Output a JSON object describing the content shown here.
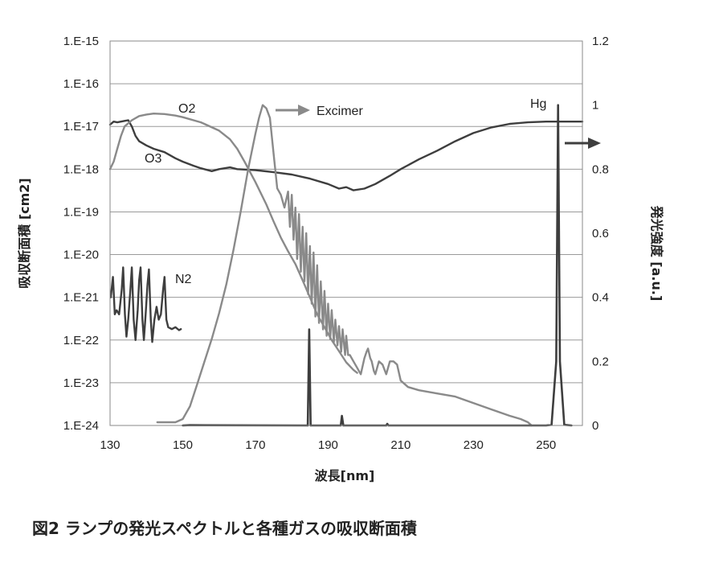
{
  "caption": "図2 ランプの発光スペクトルと各種ガスの吸収断面積",
  "chart_data": {
    "type": "line",
    "xlabel": "波長[nm]",
    "ylabel_left": "吸収断面積 [cm2]",
    "ylabel_right": "発光強度 [a.u.]",
    "xlim": [
      130,
      260
    ],
    "x_ticks": [
      "130",
      "150",
      "170",
      "190",
      "210",
      "230",
      "250"
    ],
    "x_tick_values": [
      130,
      150,
      170,
      190,
      210,
      230,
      250
    ],
    "y_left_scale": "log",
    "y_left_lim": [
      1e-24,
      1e-15
    ],
    "y_left_ticks": [
      "1.E-15",
      "1.E-16",
      "1.E-17",
      "1.E-18",
      "1.E-19",
      "1.E-20",
      "1.E-21",
      "1.E-22",
      "1.E-23",
      "1.E-24"
    ],
    "y_left_tick_exponents": [
      -15,
      -16,
      -17,
      -18,
      -19,
      -20,
      -21,
      -22,
      -23,
      -24
    ],
    "y_right_lim": [
      0,
      1.2
    ],
    "y_right_ticks": [
      "1.2",
      "1",
      "0.8",
      "0.6",
      "0.4",
      "0.2",
      "0"
    ],
    "y_right_tick_values": [
      1.2,
      1.0,
      0.8,
      0.6,
      0.4,
      0.2,
      0.0
    ],
    "grid": "horizontal",
    "annotations": {
      "o2": "O2",
      "o3": "O3",
      "n2": "N2",
      "excimer": "Excimer",
      "hg": "Hg"
    },
    "series": [
      {
        "name": "O2",
        "axis": "left",
        "color": "#8a8a8a",
        "points": [
          [
            130,
            1e-18
          ],
          [
            131,
            1.5e-18
          ],
          [
            132,
            3e-18
          ],
          [
            133,
            6e-18
          ],
          [
            134,
            1e-17
          ],
          [
            136,
            1.4e-17
          ],
          [
            138,
            1.75e-17
          ],
          [
            140,
            1.9e-17
          ],
          [
            142,
            2e-17
          ],
          [
            145,
            1.95e-17
          ],
          [
            148,
            1.8e-17
          ],
          [
            150,
            1.65e-17
          ],
          [
            155,
            1.25e-17
          ],
          [
            160,
            8e-18
          ],
          [
            163,
            5e-18
          ],
          [
            165,
            3e-18
          ],
          [
            167,
            1.5e-18
          ],
          [
            170,
            5e-19
          ],
          [
            173,
            1.5e-19
          ],
          [
            175,
            6e-20
          ],
          [
            177,
            2.5e-20
          ],
          [
            179,
            1.2e-20
          ],
          [
            181,
            6e-21
          ],
          [
            183,
            2.5e-21
          ],
          [
            185,
            1e-21
          ],
          [
            187,
            4e-22
          ],
          [
            189,
            2e-22
          ],
          [
            191,
            1e-22
          ],
          [
            193,
            5.5e-23
          ],
          [
            195,
            3e-23
          ],
          [
            197,
            2e-23
          ],
          [
            198,
            1.7e-23
          ]
        ]
      },
      {
        "name": "O3",
        "axis": "left",
        "color": "#3e3e3e",
        "points": [
          [
            130,
            1.1e-17
          ],
          [
            131,
            1.3e-17
          ],
          [
            132,
            1.25e-17
          ],
          [
            133,
            1.3e-17
          ],
          [
            134,
            1.35e-17
          ],
          [
            135,
            1.4e-17
          ],
          [
            136,
            1e-17
          ],
          [
            137,
            6e-18
          ],
          [
            138,
            4.5e-18
          ],
          [
            140,
            3.6e-18
          ],
          [
            142,
            3e-18
          ],
          [
            145,
            2.5e-18
          ],
          [
            148,
            1.8e-18
          ],
          [
            150,
            1.5e-18
          ],
          [
            153,
            1.2e-18
          ],
          [
            155,
            1.05e-18
          ],
          [
            158,
            9e-19
          ],
          [
            160,
            1e-18
          ],
          [
            163,
            1.1e-18
          ],
          [
            165,
            1e-18
          ],
          [
            170,
            9.5e-19
          ],
          [
            175,
            8.5e-19
          ],
          [
            180,
            7.5e-19
          ],
          [
            185,
            6e-19
          ],
          [
            190,
            4.5e-19
          ],
          [
            193,
            3.5e-19
          ],
          [
            195,
            3.8e-19
          ],
          [
            197,
            3.2e-19
          ],
          [
            200,
            3.5e-19
          ],
          [
            203,
            4.5e-19
          ],
          [
            207,
            7e-19
          ],
          [
            210,
            1e-18
          ],
          [
            215,
            1.7e-18
          ],
          [
            220,
            2.7e-18
          ],
          [
            225,
            4.5e-18
          ],
          [
            230,
            7e-18
          ],
          [
            235,
            9.5e-18
          ],
          [
            240,
            1.15e-17
          ],
          [
            245,
            1.25e-17
          ],
          [
            250,
            1.3e-17
          ],
          [
            255,
            1.3e-17
          ],
          [
            260,
            1.3e-17
          ]
        ]
      },
      {
        "name": "N2",
        "axis": "left",
        "color": "#3e3e3e",
        "points": [
          [
            130.2,
            1e-21
          ],
          [
            130.8,
            3e-21
          ],
          [
            131.3,
            4e-22
          ],
          [
            131.8,
            5e-22
          ],
          [
            132.5,
            4e-22
          ],
          [
            133.2,
            1.5e-21
          ],
          [
            133.6,
            5e-21
          ],
          [
            134.1,
            4e-22
          ],
          [
            134.5,
            1.2e-22
          ],
          [
            135.0,
            3e-22
          ],
          [
            135.6,
            1.5e-21
          ],
          [
            136.0,
            5e-21
          ],
          [
            136.5,
            3e-22
          ],
          [
            137.0,
            1e-22
          ],
          [
            137.6,
            5e-22
          ],
          [
            138.0,
            2.5e-21
          ],
          [
            138.4,
            5e-21
          ],
          [
            138.9,
            3e-22
          ],
          [
            139.3,
            1e-22
          ],
          [
            139.8,
            4e-22
          ],
          [
            140.3,
            2e-21
          ],
          [
            140.7,
            4.5e-21
          ],
          [
            141.2,
            3e-22
          ],
          [
            141.6,
            9e-23
          ],
          [
            142.2,
            3e-22
          ],
          [
            142.8,
            6e-22
          ],
          [
            143.4,
            3e-22
          ],
          [
            144.0,
            4e-22
          ],
          [
            144.6,
            1.5e-21
          ],
          [
            145.0,
            3e-21
          ],
          [
            145.5,
            3e-22
          ],
          [
            146.0,
            2e-22
          ],
          [
            147,
            1.8e-22
          ],
          [
            148,
            2e-22
          ],
          [
            149,
            1.7e-22
          ],
          [
            149.5,
            1.8e-22
          ]
        ]
      },
      {
        "name": "Excimer",
        "axis": "right",
        "color": "#8a8a8a",
        "points": [
          [
            143,
            0.01
          ],
          [
            146,
            0.01
          ],
          [
            148,
            0.01
          ],
          [
            150,
            0.02
          ],
          [
            152,
            0.06
          ],
          [
            154,
            0.13
          ],
          [
            156,
            0.2
          ],
          [
            158,
            0.27
          ],
          [
            160,
            0.35
          ],
          [
            162,
            0.44
          ],
          [
            164,
            0.55
          ],
          [
            166,
            0.67
          ],
          [
            168,
            0.8
          ],
          [
            170,
            0.91
          ],
          [
            171,
            0.96
          ],
          [
            172,
            1.0
          ],
          [
            173,
            0.99
          ],
          [
            174,
            0.96
          ],
          [
            175,
            0.85
          ],
          [
            176,
            0.74
          ],
          [
            177,
            0.72
          ],
          [
            178,
            0.68
          ],
          [
            179,
            0.73
          ],
          [
            179.5,
            0.62
          ],
          [
            180,
            0.72
          ],
          [
            180.5,
            0.58
          ],
          [
            181,
            0.68
          ],
          [
            181.5,
            0.52
          ],
          [
            182,
            0.66
          ],
          [
            182.5,
            0.48
          ],
          [
            183,
            0.62
          ],
          [
            183.5,
            0.45
          ],
          [
            184,
            0.6
          ],
          [
            184.5,
            0.41
          ],
          [
            185,
            0.56
          ],
          [
            185.5,
            0.38
          ],
          [
            186,
            0.54
          ],
          [
            186.5,
            0.34
          ],
          [
            187,
            0.5
          ],
          [
            187.5,
            0.32
          ],
          [
            188,
            0.45
          ],
          [
            188.6,
            0.3
          ],
          [
            189,
            0.42
          ],
          [
            189.6,
            0.28
          ],
          [
            190,
            0.38
          ],
          [
            190.6,
            0.27
          ],
          [
            191,
            0.36
          ],
          [
            191.6,
            0.26
          ],
          [
            192,
            0.33
          ],
          [
            192.6,
            0.25
          ],
          [
            193,
            0.31
          ],
          [
            193.6,
            0.23
          ],
          [
            194,
            0.3
          ],
          [
            194.7,
            0.22
          ],
          [
            195,
            0.28
          ],
          [
            195.5,
            0.22
          ],
          [
            196,
            0.22
          ],
          [
            197,
            0.2
          ],
          [
            198,
            0.18
          ],
          [
            199,
            0.16
          ],
          [
            200,
            0.21
          ],
          [
            200.6,
            0.23
          ],
          [
            201,
            0.24
          ],
          [
            201.6,
            0.21
          ],
          [
            202,
            0.2
          ],
          [
            202.6,
            0.17
          ],
          [
            203,
            0.16
          ],
          [
            204,
            0.2
          ],
          [
            205,
            0.19
          ],
          [
            206,
            0.16
          ],
          [
            207,
            0.2
          ],
          [
            208,
            0.2
          ],
          [
            209,
            0.19
          ],
          [
            210,
            0.14
          ],
          [
            212,
            0.12
          ],
          [
            215,
            0.11
          ],
          [
            220,
            0.1
          ],
          [
            225,
            0.09
          ],
          [
            230,
            0.07
          ],
          [
            235,
            0.05
          ],
          [
            240,
            0.03
          ],
          [
            243,
            0.02
          ],
          [
            245,
            0.01
          ],
          [
            246,
            0.0
          ]
        ]
      },
      {
        "name": "Hg",
        "axis": "right",
        "color": "#3e3e3e",
        "points": [
          [
            150,
            0.0
          ],
          [
            152,
            0.001
          ],
          [
            184.4,
            0.0
          ],
          [
            184.8,
            0.3
          ],
          [
            185.2,
            0.0
          ],
          [
            193.5,
            0.0
          ],
          [
            193.8,
            0.03
          ],
          [
            194.2,
            0.0
          ],
          [
            206,
            0.0
          ],
          [
            206.3,
            0.005
          ],
          [
            206.6,
            0.0
          ],
          [
            240,
            0.0
          ],
          [
            250,
            0.0
          ],
          [
            251.5,
            0.002
          ],
          [
            252.8,
            0.2
          ],
          [
            253.3,
            1.0
          ],
          [
            253.8,
            0.2
          ],
          [
            255,
            0.002
          ],
          [
            257,
            0.0
          ]
        ]
      }
    ]
  }
}
